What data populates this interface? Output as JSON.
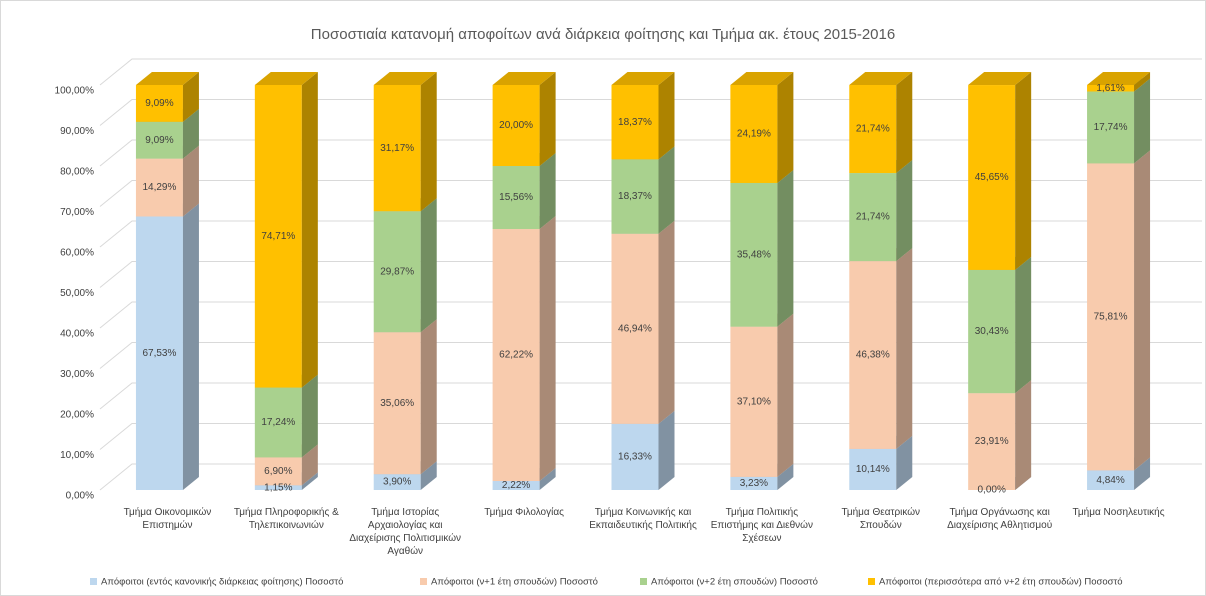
{
  "chart_data": {
    "type": "bar3d_stacked",
    "title": "Ποσοστιαία κατανομή αποφοίτων ανά διάρκεια φοίτησης και Τμήμα ακ. έτους 2015-2016",
    "categories": [
      "Τμήμα Οικονομικών Επιστημών",
      "Τμήμα Πληροφορικής & Τηλεπικοινωνιών",
      "Τμήμα Ιστορίας Αρχαιολογίας και Διαχείρισης Πολιτισμικών Αγαθών",
      "Τμήμα Φιλολογίας",
      "Τμήμα Κοινωνικής και Εκπαιδευτικής Πολιτικής",
      "Τμήμα Πολιτικής Επιστήμης και Διεθνών Σχέσεων",
      "Τμήμα Θεατρικών Σπουδών",
      "Τμήμα Οργάνωσης και Διαχείρισης Αθλητισμού",
      "Τμήμα Νοσηλευτικής"
    ],
    "series": [
      {
        "name": "Απόφοιτοι (εντός κανονικής διάρκειας φοίτησης) Ποσοστό",
        "color": "#bdd7ee",
        "values": [
          67.53,
          1.15,
          3.9,
          2.22,
          16.33,
          3.23,
          10.14,
          0.0,
          4.84
        ],
        "value_labels": [
          "67,53%",
          "1,15%",
          "3,90%",
          "2,22%",
          "16,33%",
          "3,23%",
          "10,14%",
          "0,00%",
          "4,84%"
        ]
      },
      {
        "name": "Απόφοιτοι (ν+1 έτη σπουδών)  Ποσοστό",
        "color": "#f8cbad",
        "values": [
          14.29,
          6.9,
          35.06,
          62.22,
          46.94,
          37.1,
          46.38,
          23.91,
          75.81
        ],
        "value_labels": [
          "14,29%",
          "6,90%",
          "35,06%",
          "62,22%",
          "46,94%",
          "37,10%",
          "46,38%",
          "23,91%",
          "75,81%"
        ]
      },
      {
        "name": "Απόφοιτοι (ν+2 έτη σπουδών) Ποσοστό",
        "color": "#a9d18e",
        "values": [
          9.09,
          17.24,
          29.87,
          15.56,
          18.37,
          35.48,
          21.74,
          30.43,
          17.74
        ],
        "value_labels": [
          "9,09%",
          "17,24%",
          "29,87%",
          "15,56%",
          "18,37%",
          "35,48%",
          "21,74%",
          "30,43%",
          "17,74%"
        ]
      },
      {
        "name": "Απόφοιτοι (περισσότερα από ν+2 έτη σπουδών) Ποσοστό",
        "color": "#ffc000",
        "values": [
          9.09,
          74.71,
          31.17,
          20.0,
          18.37,
          24.19,
          21.74,
          45.65,
          1.61
        ],
        "value_labels": [
          "9,09%",
          "74,71%",
          "31,17%",
          "20,00%",
          "18,37%",
          "24,19%",
          "21,74%",
          "45,65%",
          "1,61%"
        ]
      }
    ],
    "ylim": [
      0,
      100
    ],
    "yticks": [
      {
        "value": 0,
        "label": "0,00%"
      },
      {
        "value": 10,
        "label": "10,00%"
      },
      {
        "value": 20,
        "label": "20,00%"
      },
      {
        "value": 30,
        "label": "30,00%"
      },
      {
        "value": 40,
        "label": "40,00%"
      },
      {
        "value": 50,
        "label": "50,00%"
      },
      {
        "value": 60,
        "label": "60,00%"
      },
      {
        "value": 70,
        "label": "70,00%"
      },
      {
        "value": 80,
        "label": "80,00%"
      },
      {
        "value": 90,
        "label": "90,00%"
      },
      {
        "value": 100,
        "label": "100,00%"
      }
    ],
    "grid": true,
    "legend": "bottom"
  }
}
